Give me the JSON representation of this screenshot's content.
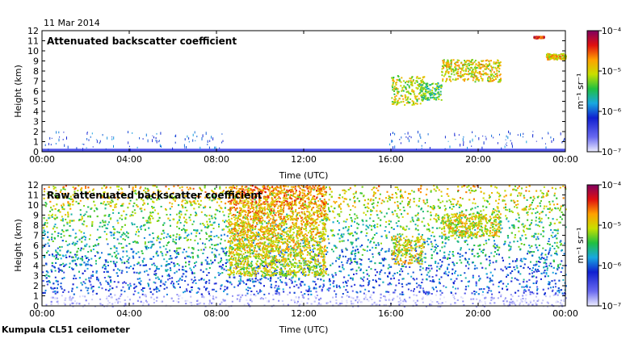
{
  "date": "11 Mar 2014",
  "footer": "Kumpula CL51 ceilometer",
  "chart_data": [
    {
      "type": "heatmap",
      "title": "Attenuated backscatter coefficient",
      "xlabel": "Time (UTC)",
      "ylabel": "Height (km)",
      "xticks": [
        "00:00",
        "04:00",
        "08:00",
        "12:00",
        "16:00",
        "20:00",
        "00:00"
      ],
      "yticks": [
        "0",
        "1",
        "2",
        "3",
        "4",
        "5",
        "6",
        "7",
        "8",
        "9",
        "10",
        "11",
        "12"
      ],
      "xlim_hours": [
        0,
        24
      ],
      "ylim_km": [
        0,
        12
      ],
      "colorbar": {
        "label": "m⁻¹ sr⁻¹",
        "ticks": [
          "10⁻⁴",
          "10⁻⁵",
          "10⁻⁶",
          "10⁻⁷"
        ],
        "log_range": [
          -7,
          -4
        ]
      },
      "features": [
        {
          "kind": "surface_layer",
          "t_start": 0,
          "t_end": 24,
          "h_top": 0.3,
          "level": -6.5
        },
        {
          "kind": "cloud",
          "t_start": 16.0,
          "t_end": 17.5,
          "h_bottom": 4.7,
          "h_top": 7.6,
          "level": -5.1
        },
        {
          "kind": "cloud",
          "t_start": 17.3,
          "t_end": 18.3,
          "h_bottom": 5.2,
          "h_top": 6.9,
          "level": -5.4
        },
        {
          "kind": "cloud",
          "t_start": 18.3,
          "t_end": 21.0,
          "h_bottom": 7.0,
          "h_top": 9.2,
          "level": -5.0
        },
        {
          "kind": "cloud",
          "t_start": 23.1,
          "t_end": 24.0,
          "h_bottom": 9.2,
          "h_top": 9.8,
          "level": -4.9
        },
        {
          "kind": "cloud",
          "t_start": 22.5,
          "t_end": 23.0,
          "h_bottom": 11.3,
          "h_top": 11.5,
          "level": -4.4
        }
      ]
    },
    {
      "type": "heatmap",
      "title": "Raw attenuated backscatter coefficient",
      "xlabel": "Time (UTC)",
      "ylabel": "Height (km)",
      "xticks": [
        "00:00",
        "04:00",
        "08:00",
        "12:00",
        "16:00",
        "20:00",
        "00:00"
      ],
      "yticks": [
        "0",
        "1",
        "2",
        "3",
        "4",
        "5",
        "6",
        "7",
        "8",
        "9",
        "10",
        "11",
        "12"
      ],
      "xlim_hours": [
        0,
        24
      ],
      "ylim_km": [
        0,
        12
      ],
      "colorbar": {
        "label": "m⁻¹ sr⁻¹",
        "ticks": [
          "10⁻⁴",
          "10⁻⁵",
          "10⁻⁶",
          "10⁻⁷"
        ],
        "log_range": [
          -7,
          -4
        ]
      },
      "features": [
        {
          "kind": "noise_background",
          "t_start": 0,
          "t_end": 24,
          "h_bottom": 0,
          "h_top": 12
        },
        {
          "kind": "noisy_region",
          "t_start": 8.5,
          "t_end": 13.0,
          "h_bottom": 3,
          "h_top": 12,
          "level": -5.1
        },
        {
          "kind": "cloud",
          "t_start": 16.0,
          "t_end": 17.5,
          "h_bottom": 4.2,
          "h_top": 7.0,
          "level": -5.0
        },
        {
          "kind": "cloud",
          "t_start": 18.3,
          "t_end": 21.0,
          "h_bottom": 7.0,
          "h_top": 9.2,
          "level": -5.0
        }
      ]
    }
  ]
}
